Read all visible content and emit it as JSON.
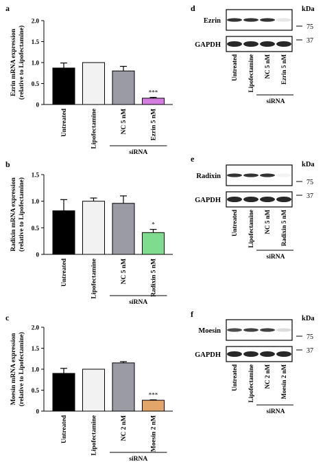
{
  "panels": {
    "a": "a",
    "b": "b",
    "c": "c",
    "d": "d",
    "e": "e",
    "f": "f"
  },
  "colors": {
    "untreated": "#000000",
    "lipofectamine": "#f2f2f2",
    "nc": "#9b9ba3",
    "ezrin": "#d47ee0",
    "radixin": "#7fdc8f",
    "moesin": "#e2a56a",
    "blot_band": "#111111"
  },
  "blots": [
    {
      "panel": "d",
      "target_label": "Ezrin",
      "loading_label": "GAPDH",
      "unit": "kDa",
      "markers": [
        "75",
        "37"
      ],
      "lanes": [
        "Untreated",
        "Lipofectamine",
        "NC 5 nM",
        "Ezrin 5 nM"
      ],
      "group_label": "siRNA",
      "target_intensity": [
        0.85,
        0.85,
        0.85,
        0.1
      ],
      "loading_intensity": [
        0.9,
        0.9,
        0.9,
        0.9
      ]
    },
    {
      "panel": "e",
      "target_label": "Radixin",
      "loading_label": "GAPDH",
      "unit": "kDa",
      "markers": [
        "75",
        "37"
      ],
      "lanes": [
        "Untreated",
        "Lipofectamine",
        "NC 5 nM",
        "Radixin 5 nM"
      ],
      "group_label": "siRNA",
      "target_intensity": [
        0.85,
        0.85,
        0.85,
        0.05
      ],
      "loading_intensity": [
        0.9,
        0.9,
        0.9,
        0.9
      ]
    },
    {
      "panel": "f",
      "target_label": "Moesin",
      "loading_label": "GAPDH",
      "unit": "kDa",
      "markers": [
        "75",
        "37"
      ],
      "lanes": [
        "Untreated",
        "Lipofectamine",
        "NC 2 nM",
        "Moesin 2 nM"
      ],
      "group_label": "siRNA",
      "target_intensity": [
        0.75,
        0.8,
        0.8,
        0.15
      ],
      "loading_intensity": [
        0.9,
        0.9,
        0.9,
        0.9
      ]
    }
  ],
  "chart_data": [
    {
      "panel": "a",
      "type": "bar",
      "ylabel": "Ezrin mRNA expression (relative to Lipofectamine)",
      "ylabel_lines": [
        "Ezrin mRNA expression",
        "(relative to Lipofectamine)"
      ],
      "ylim": [
        0,
        2.0
      ],
      "yticks": [
        "0",
        "0.5",
        "1.0",
        "1.5",
        "2.0"
      ],
      "categories": [
        "Untreated",
        "Lipofectamine",
        "NC 5 nM",
        "Ezrin 5 nM"
      ],
      "values": [
        0.87,
        1.0,
        0.8,
        0.15
      ],
      "errors": [
        0.12,
        0,
        0.11,
        0.02
      ],
      "significance": [
        "",
        "",
        "",
        "***"
      ],
      "group_label": "siRNA"
    },
    {
      "panel": "b",
      "type": "bar",
      "ylabel": "Radixin mRNA expression (relative to Lipofectamine)",
      "ylabel_lines": [
        "Radixin mRNA expression",
        "(relative to Lipofectamine)"
      ],
      "ylim": [
        0,
        1.5
      ],
      "yticks": [
        "0",
        "0.5",
        "1.0",
        "1.5"
      ],
      "categories": [
        "Untreated",
        "Lipofectamine",
        "NC 5 nM",
        "Radixin 5 nM"
      ],
      "values": [
        0.82,
        1.0,
        0.96,
        0.41
      ],
      "errors": [
        0.21,
        0.06,
        0.14,
        0.06
      ],
      "significance": [
        "",
        "",
        "",
        "*"
      ],
      "group_label": "siRNA"
    },
    {
      "panel": "c",
      "type": "bar",
      "ylabel": "Moesin mRNA expression (relative to Lipofectamine)",
      "ylabel_lines": [
        "Moesin mRNA expression",
        "(relative to Lipofectamine)"
      ],
      "ylim": [
        0,
        2.0
      ],
      "yticks": [
        "0",
        "0.5",
        "1.0",
        "1.5",
        "2.0"
      ],
      "categories": [
        "Untreated",
        "Lipofectamine",
        "NC 2 nM",
        "Moesin 2 nM"
      ],
      "values": [
        0.9,
        1.0,
        1.15,
        0.26
      ],
      "errors": [
        0.12,
        0,
        0.03,
        0.01
      ],
      "significance": [
        "",
        "",
        "",
        "***"
      ],
      "group_label": "siRNA"
    }
  ]
}
